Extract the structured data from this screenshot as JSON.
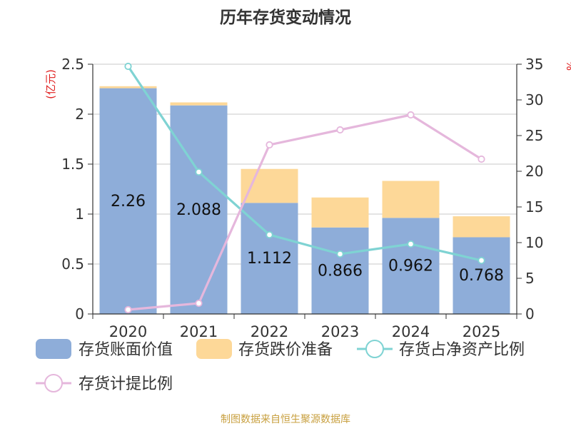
{
  "title": "历年存货变动情况",
  "source": "制图数据来自恒生聚源数据库",
  "colors": {
    "book_value": "#8eadd9",
    "provision": "#fdd898",
    "ratio_net_assets": "#7fd3d3",
    "provision_ratio": "#e5b7dc",
    "axis_unit": "#e02020",
    "source_text": "#c8a040",
    "title_text": "#333333",
    "grid": "#c8c8c8"
  },
  "chart_data": {
    "type": "bar",
    "stacked": true,
    "categories": [
      "2020",
      "2021",
      "2022",
      "2023",
      "2024",
      "2025"
    ],
    "left_axis": {
      "unit_label": "(亿元)",
      "ylim": [
        0,
        2.5
      ],
      "ticks": [
        "0",
        "0.5",
        "1",
        "1.5",
        "2",
        "2.5"
      ]
    },
    "right_axis": {
      "unit_label": "%",
      "ylim": [
        0,
        35
      ],
      "ticks": [
        "0",
        "5",
        "10",
        "15",
        "20",
        "25",
        "30",
        "35"
      ]
    },
    "series": [
      {
        "name": "存货账面价值",
        "kind": "bar",
        "axis": "left",
        "values": [
          2.26,
          2.088,
          1.112,
          0.866,
          0.962,
          0.768
        ],
        "labels": [
          "2.26",
          "2.088",
          "1.112",
          "0.866",
          "0.962",
          "0.768"
        ]
      },
      {
        "name": "存货跌价准备",
        "kind": "bar",
        "axis": "left",
        "values": [
          0.02,
          0.03,
          0.34,
          0.3,
          0.37,
          0.21
        ]
      },
      {
        "name": "存货占净资产比例",
        "kind": "line",
        "axis": "right",
        "values": [
          34.7,
          19.9,
          11.1,
          8.4,
          9.8,
          7.5
        ]
      },
      {
        "name": "存货计提比例",
        "kind": "line",
        "axis": "right",
        "values": [
          0.6,
          1.5,
          23.7,
          25.8,
          27.9,
          21.7
        ]
      }
    ],
    "grid": true,
    "legend_position": "bottom"
  }
}
